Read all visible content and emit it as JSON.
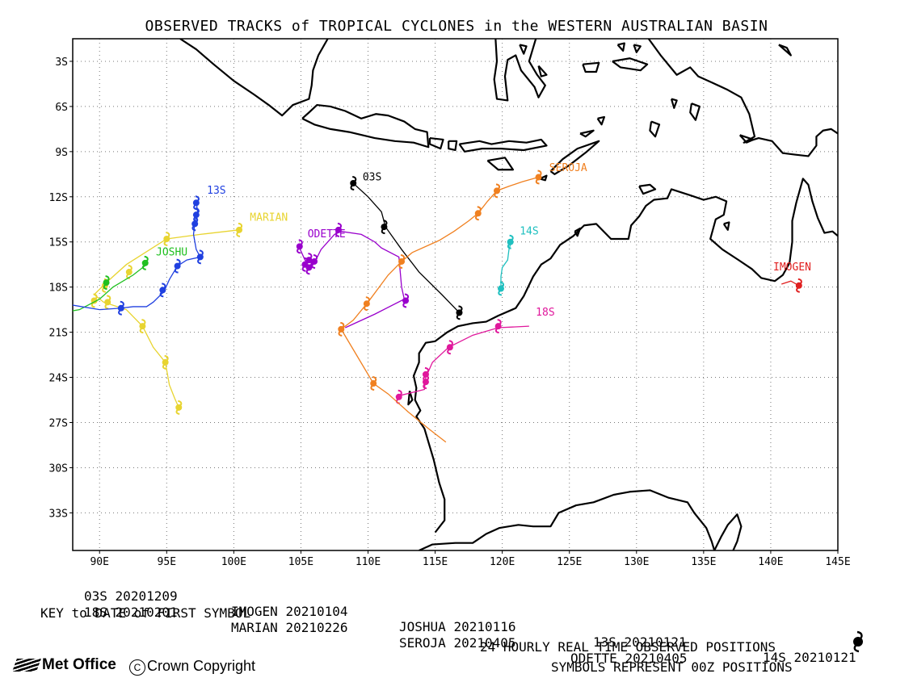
{
  "title": "OBSERVED TRACKS of TROPICAL CYCLONES in the WESTERN AUSTRALIAN BASIN",
  "map": {
    "lon_range": [
      88,
      145
    ],
    "lat_range": [
      -35.5,
      -1.5
    ],
    "lat_labels": [
      "3S",
      "6S",
      "9S",
      "12S",
      "15S",
      "18S",
      "21S",
      "24S",
      "27S",
      "30S",
      "33S"
    ],
    "lat_values": [
      -3,
      -6,
      -9,
      -12,
      -15,
      -18,
      -21,
      -24,
      -27,
      -30,
      -33
    ],
    "lon_labels": [
      "90E",
      "95E",
      "100E",
      "105E",
      "110E",
      "115E",
      "120E",
      "125E",
      "130E",
      "135E",
      "140E",
      "145E"
    ],
    "lon_values": [
      90,
      95,
      100,
      105,
      110,
      115,
      120,
      125,
      130,
      135,
      140,
      145
    ],
    "grid": "dotted"
  },
  "tracks": [
    {
      "name": "03S",
      "color": "#000000",
      "label": "03S",
      "path": [
        [
          108.9,
          -11.1
        ],
        [
          110,
          -12
        ],
        [
          111,
          -13
        ],
        [
          111.3,
          -14
        ],
        [
          112.5,
          -15.5
        ],
        [
          113.8,
          -17
        ],
        [
          115.5,
          -18.5
        ],
        [
          116.8,
          -19.7
        ]
      ],
      "symbols": [
        [
          108.9,
          -11.1
        ],
        [
          111.2,
          -14.0
        ],
        [
          116.8,
          -19.7
        ]
      ]
    },
    {
      "name": "18S",
      "color": "#e0189c",
      "label": "18S",
      "path": [
        [
          122.0,
          -20.6
        ],
        [
          119.7,
          -20.7
        ],
        [
          117.8,
          -21.2
        ],
        [
          116.0,
          -22.0
        ],
        [
          114.8,
          -23.0
        ],
        [
          114.3,
          -24.0
        ],
        [
          114.2,
          -24.8
        ],
        [
          112.4,
          -25.2
        ]
      ],
      "symbols": [
        [
          119.7,
          -20.6
        ],
        [
          116.1,
          -22.0
        ],
        [
          114.3,
          -23.8
        ],
        [
          114.3,
          -24.3
        ],
        [
          112.3,
          -25.3
        ]
      ]
    },
    {
      "name": "IMOGEN",
      "color": "#e02020",
      "label": "IMOGEN",
      "path": [
        [
          140.8,
          -17.8
        ],
        [
          141.5,
          -17.6
        ],
        [
          142.1,
          -17.9
        ]
      ],
      "symbols": [
        [
          142.1,
          -17.9
        ]
      ]
    },
    {
      "name": "MARIAN",
      "color": "#e8d430",
      "label": "MARIAN",
      "path": [
        [
          100.4,
          -14.2
        ],
        [
          97.5,
          -14.5
        ],
        [
          95.0,
          -14.8
        ],
        [
          92.0,
          -16.5
        ],
        [
          90.5,
          -17.7
        ],
        [
          89.6,
          -18.5
        ],
        [
          90.3,
          -19.0
        ],
        [
          92.0,
          -19.5
        ],
        [
          93.2,
          -20.6
        ],
        [
          94.0,
          -22.0
        ],
        [
          94.9,
          -23.0
        ],
        [
          95.2,
          -24.5
        ],
        [
          95.6,
          -25.4
        ],
        [
          95.9,
          -26.0
        ]
      ],
      "symbols": [
        [
          100.4,
          -14.2
        ],
        [
          95.0,
          -14.8
        ],
        [
          92.2,
          -17.0
        ],
        [
          90.4,
          -17.9
        ],
        [
          89.6,
          -18.9
        ],
        [
          90.6,
          -19.0
        ],
        [
          93.2,
          -20.6
        ],
        [
          94.9,
          -23.0
        ],
        [
          95.9,
          -26.0
        ]
      ]
    },
    {
      "name": "JOSHUA",
      "color": "#20c020",
      "label": "JOSHU",
      "path": [
        [
          93.5,
          -16.5
        ],
        [
          92.5,
          -17.2
        ],
        [
          91.0,
          -18.0
        ],
        [
          90.0,
          -18.8
        ],
        [
          88.5,
          -19.5
        ],
        [
          86.5,
          -19.8
        ]
      ],
      "symbols": [
        [
          93.4,
          -16.4
        ],
        [
          90.5,
          -17.7
        ]
      ]
    },
    {
      "name": "13S",
      "color": "#2040e0",
      "label": "13S",
      "path": [
        [
          97.2,
          -12.3
        ],
        [
          97.3,
          -13.0
        ],
        [
          97.1,
          -13.7
        ],
        [
          97.0,
          -14.5
        ],
        [
          97.2,
          -15.5
        ],
        [
          97.5,
          -16.0
        ],
        [
          96.5,
          -16.2
        ],
        [
          95.8,
          -16.6
        ],
        [
          95.2,
          -17.5
        ],
        [
          94.8,
          -18.3
        ],
        [
          94.0,
          -19.0
        ],
        [
          93.5,
          -19.3
        ],
        [
          92.5,
          -19.3
        ],
        [
          91.6,
          -19.4
        ],
        [
          90.0,
          -19.5
        ],
        [
          88.0,
          -19.2
        ],
        [
          86.0,
          -18.6
        ]
      ],
      "symbols": [
        [
          97.2,
          -12.4
        ],
        [
          97.2,
          -13.2
        ],
        [
          97.1,
          -13.8
        ],
        [
          97.5,
          -16.0
        ],
        [
          95.8,
          -16.6
        ],
        [
          94.7,
          -18.2
        ],
        [
          91.6,
          -19.4
        ]
      ]
    },
    {
      "name": "ODETTE",
      "color": "#9900cc",
      "label": "ODETTE",
      "path": [
        [
          104.9,
          -15.4
        ],
        [
          105.3,
          -16.2
        ],
        [
          105.6,
          -16.8
        ],
        [
          106.0,
          -16.4
        ],
        [
          106.5,
          -15.5
        ],
        [
          107.5,
          -14.5
        ],
        [
          108.0,
          -14.3
        ],
        [
          109.5,
          -14.5
        ],
        [
          110.5,
          -15.0
        ],
        [
          111.0,
          -15.4
        ],
        [
          112.3,
          -16.0
        ],
        [
          112.5,
          -18.0
        ],
        [
          112.7,
          -18.8
        ],
        [
          110.5,
          -19.8
        ],
        [
          108.3,
          -20.7
        ]
      ],
      "symbols": [
        [
          104.9,
          -15.3
        ],
        [
          105.3,
          -16.5
        ],
        [
          105.6,
          -16.2
        ],
        [
          105.6,
          -16.7
        ],
        [
          106.0,
          -16.3
        ],
        [
          107.8,
          -14.2
        ],
        [
          112.8,
          -18.9
        ]
      ]
    },
    {
      "name": "14S",
      "color": "#20c0c0",
      "label": "14S",
      "path": [
        [
          120.7,
          -14.9
        ],
        [
          120.5,
          -15.5
        ],
        [
          120.4,
          -16.2
        ],
        [
          120.0,
          -16.7
        ],
        [
          119.9,
          -17.3
        ],
        [
          119.9,
          -18.0
        ],
        [
          119.8,
          -18.3
        ]
      ],
      "symbols": [
        [
          120.6,
          -15.0
        ],
        [
          119.9,
          -18.1
        ]
      ]
    },
    {
      "name": "SEROJA",
      "color": "#f08020",
      "label": "SEROJA",
      "path": [
        [
          122.7,
          -10.7
        ],
        [
          121.5,
          -11.0
        ],
        [
          120.5,
          -11.3
        ],
        [
          119.6,
          -11.6
        ],
        [
          118.9,
          -12.3
        ],
        [
          118.2,
          -13.1
        ],
        [
          117.5,
          -13.6
        ],
        [
          116.4,
          -14.3
        ],
        [
          115.3,
          -14.9
        ],
        [
          113.3,
          -15.7
        ],
        [
          112.5,
          -16.3
        ],
        [
          111.5,
          -17.2
        ],
        [
          110.0,
          -19.0
        ],
        [
          108.9,
          -20.2
        ],
        [
          108.0,
          -20.8
        ],
        [
          108.8,
          -22.0
        ],
        [
          110.4,
          -24.4
        ],
        [
          111.5,
          -25.1
        ],
        [
          113.0,
          -26.3
        ],
        [
          114.5,
          -27.4
        ],
        [
          115.8,
          -28.3
        ]
      ],
      "symbols": [
        [
          122.7,
          -10.7
        ],
        [
          119.6,
          -11.6
        ],
        [
          118.2,
          -13.1
        ],
        [
          112.5,
          -16.3
        ],
        [
          109.9,
          -19.1
        ],
        [
          108.0,
          -20.8
        ],
        [
          110.4,
          -24.4
        ]
      ]
    }
  ],
  "key": {
    "row1": [
      {
        "name": "03S",
        "date": "20201209"
      },
      {
        "name": "IMOGEN",
        "date": "20210104"
      },
      {
        "name": "JOSHUA",
        "date": "20210116"
      },
      {
        "name": "13S",
        "date": "20210121"
      },
      {
        "name": "14S",
        "date": "20210121"
      }
    ],
    "row2": [
      {
        "name": "18S",
        "date": "20210201"
      },
      {
        "name": "MARIAN",
        "date": "20210226"
      },
      {
        "name": "SEROJA",
        "date": "20210405"
      },
      {
        "name": "ODETTE",
        "date": "20210405"
      }
    ],
    "caption": "KEY to DATE of FIRST SYMBOL"
  },
  "footer": {
    "observed": "24 HOURLY REAL TIME OBSERVED POSITIONS",
    "symbols": "SYMBOLS REPRESENT 00Z POSITIONS",
    "brand": "Met Office",
    "copyright": "Crown Copyright",
    "copyright_symbol": "C"
  }
}
